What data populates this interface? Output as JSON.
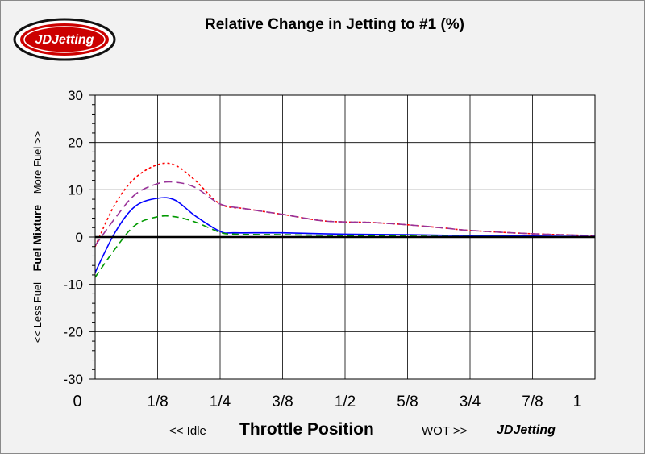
{
  "page": {
    "title": "Relative Change in Jetting to #1 (%)",
    "logo_text": "JDJetting"
  },
  "labels": {
    "x_left": "<< Idle",
    "x_main": "Throttle Position",
    "x_right": "WOT >>",
    "x_brand": "JDJetting",
    "y_left": "<< Less Fuel",
    "y_main": "Fuel Mixture",
    "y_right": "More Fuel >>"
  },
  "colors": {
    "plot_bg": "#ffffff",
    "page_bg": "#f2f2f2",
    "grid": "#000000",
    "logo_red": "#cc0000"
  },
  "chart_data": {
    "type": "line",
    "title": "Relative Change in Jetting to #1 (%)",
    "xlabel": "Throttle Position",
    "ylabel": "Fuel Mixture",
    "xlim": [
      0,
      1
    ],
    "ylim": [
      -30,
      30
    ],
    "grid": true,
    "x_ticks": [
      {
        "v": 0,
        "label": "0"
      },
      {
        "v": 0.125,
        "label": "1/8"
      },
      {
        "v": 0.25,
        "label": "1/4"
      },
      {
        "v": 0.375,
        "label": "3/8"
      },
      {
        "v": 0.5,
        "label": "1/2"
      },
      {
        "v": 0.625,
        "label": "5/8"
      },
      {
        "v": 0.75,
        "label": "3/4"
      },
      {
        "v": 0.875,
        "label": "7/8"
      },
      {
        "v": 1,
        "label": "1"
      }
    ],
    "y_ticks": [
      -30,
      -20,
      -10,
      0,
      10,
      20,
      30
    ],
    "series": [
      {
        "color": "#ff0000",
        "dash": "3,3",
        "x": [
          0,
          0.04,
          0.08,
          0.125,
          0.16,
          0.2,
          0.25,
          0.3,
          0.375,
          0.45,
          0.5,
          0.55,
          0.625,
          0.7,
          0.75,
          0.875,
          1
        ],
        "y": [
          -2,
          7,
          12.5,
          15.3,
          15.2,
          12,
          7,
          6,
          4.8,
          3.5,
          3.2,
          3.1,
          2.6,
          1.9,
          1.4,
          0.7,
          0.3
        ]
      },
      {
        "color": "#993399",
        "dash": "10,5",
        "x": [
          0,
          0.04,
          0.08,
          0.125,
          0.16,
          0.2,
          0.25,
          0.3,
          0.375,
          0.45,
          0.5,
          0.55,
          0.625,
          0.7,
          0.75,
          0.875,
          1
        ],
        "y": [
          -1.8,
          4,
          9,
          11.3,
          11.6,
          10.5,
          7,
          6,
          4.8,
          3.5,
          3.2,
          3.1,
          2.6,
          1.9,
          1.4,
          0.7,
          0.3
        ]
      },
      {
        "color": "#0000ff",
        "dash": "",
        "x": [
          0,
          0.04,
          0.08,
          0.125,
          0.16,
          0.2,
          0.25,
          0.28,
          0.375,
          0.5,
          0.625,
          0.75,
          0.875,
          1
        ],
        "y": [
          -7.5,
          1,
          6.5,
          8.2,
          7.8,
          4.5,
          1.2,
          0.9,
          0.9,
          0.6,
          0.5,
          0.3,
          0.2,
          0.1
        ]
      },
      {
        "color": "#009900",
        "dash": "8,5",
        "x": [
          0,
          0.04,
          0.08,
          0.125,
          0.16,
          0.2,
          0.25,
          0.28,
          0.375,
          0.5,
          0.625,
          0.75,
          0.875,
          1
        ],
        "y": [
          -8.5,
          -2.5,
          2.5,
          4.3,
          4.3,
          3.2,
          1,
          0.6,
          0.5,
          0.3,
          0.2,
          0.1,
          0.05,
          0
        ]
      }
    ]
  }
}
